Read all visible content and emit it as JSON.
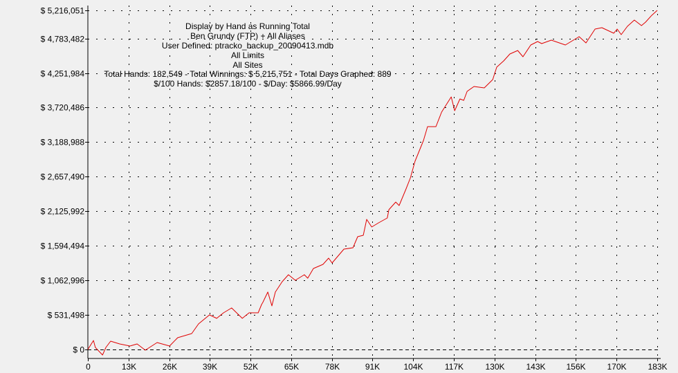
{
  "chart_data": {
    "type": "line",
    "title_lines": [
      "Display by Hand as Running Total",
      "Ben Grundy (FTP) + All Aliases",
      "User Defined: ptracko_backup_20090413.mdb",
      "All Limits",
      "All Sites",
      "Total Hands: 182,549 - Total Winnings: $ 5,215,751 - Total Days Graphed: 889",
      "$/100 Hands: $2857.18/100 - $/Day: $5866.99/Day"
    ],
    "xlabel": "",
    "ylabel": "",
    "xlim": [
      0,
      182.549
    ],
    "ylim": [
      0,
      5216051
    ],
    "x_ticks": [
      0,
      13.04,
      26.08,
      39.12,
      52.16,
      65.2,
      78.24,
      91.27,
      104.31,
      117.35,
      130.39,
      143.43,
      156.47,
      169.51,
      182.549
    ],
    "x_tick_labels": [
      "0",
      "13K",
      "26K",
      "39K",
      "52K",
      "65K",
      "78K",
      "91K",
      "104K",
      "117K",
      "130K",
      "143K",
      "156K",
      "170K",
      "183K"
    ],
    "y_ticks": [
      0,
      531498,
      1062996,
      1594494,
      2125992,
      2657490,
      3188988,
      3720486,
      4251984,
      4783482,
      5216051
    ],
    "y_tick_labels": [
      "$ 0",
      "$ 531,498",
      "$ 1,062,996",
      "$ 1,594,494",
      "$ 2,125,992",
      "$ 2,657,490",
      "$ 3,188,988",
      "$ 3,720,486",
      "$ 4,251,984",
      "$ 4,783,482",
      "$ 5,216,051"
    ],
    "grid": true,
    "line_color": "#e00000",
    "series": [
      {
        "x": [
          0,
          1.8,
          2.4,
          4.7,
          5.8,
          7.3,
          10.2,
          13.5,
          15.8,
          18.4,
          22.2,
          26.2,
          28.8,
          33.3,
          35.5,
          39,
          41.3,
          43.5,
          46.1,
          49.5,
          51.7,
          54.6,
          55.7,
          56.1,
          57.7,
          59,
          60.1,
          62.3,
          64.3,
          66.5,
          69.4,
          70.5,
          72.3,
          75.4,
          77.2,
          78.3,
          82.1,
          85,
          86.5,
          88.3,
          89.4,
          91,
          93.2,
          96,
          96.5,
          98.7,
          99.8,
          102,
          103.4,
          104.9,
          107.6,
          108.9,
          111.6,
          113.4,
          116.5,
          117.6,
          119.3,
          120.5,
          121.6,
          123.8,
          127.1,
          129.8,
          131.1,
          133.3,
          135.3,
          137.8,
          139.5,
          142,
          144.2,
          145.5,
          148.6,
          153.1,
          157.5,
          159.7,
          162.6,
          164.8,
          168.6,
          169.7,
          171,
          173,
          175.2,
          177.5,
          178.8,
          180.8,
          182.549
        ],
        "y": [
          0,
          138000,
          32000,
          -85000,
          32000,
          128000,
          85000,
          53000,
          85000,
          -11000,
          106000,
          53000,
          181000,
          245000,
          394000,
          532000,
          479000,
          564000,
          639000,
          479000,
          564000,
          564000,
          692000,
          724000,
          884000,
          671000,
          884000,
          1043000,
          1150000,
          1065000,
          1150000,
          1096000,
          1245000,
          1309000,
          1405000,
          1331000,
          1544000,
          1565000,
          1735000,
          1756000,
          2001000,
          1884000,
          1948000,
          2023000,
          2150000,
          2267000,
          2214000,
          2470000,
          2640000,
          2895000,
          3215000,
          3428000,
          3428000,
          3651000,
          3885000,
          3672000,
          3853000,
          3832000,
          3971000,
          4045000,
          4024000,
          4152000,
          4343000,
          4439000,
          4545000,
          4599000,
          4503000,
          4684000,
          4737000,
          4705000,
          4758000,
          4684000,
          4812000,
          4716000,
          4929000,
          4950000,
          4865000,
          4929000,
          4844000,
          4971000,
          5067000,
          4982000,
          5035000,
          5141000,
          5215751
        ]
      }
    ]
  }
}
